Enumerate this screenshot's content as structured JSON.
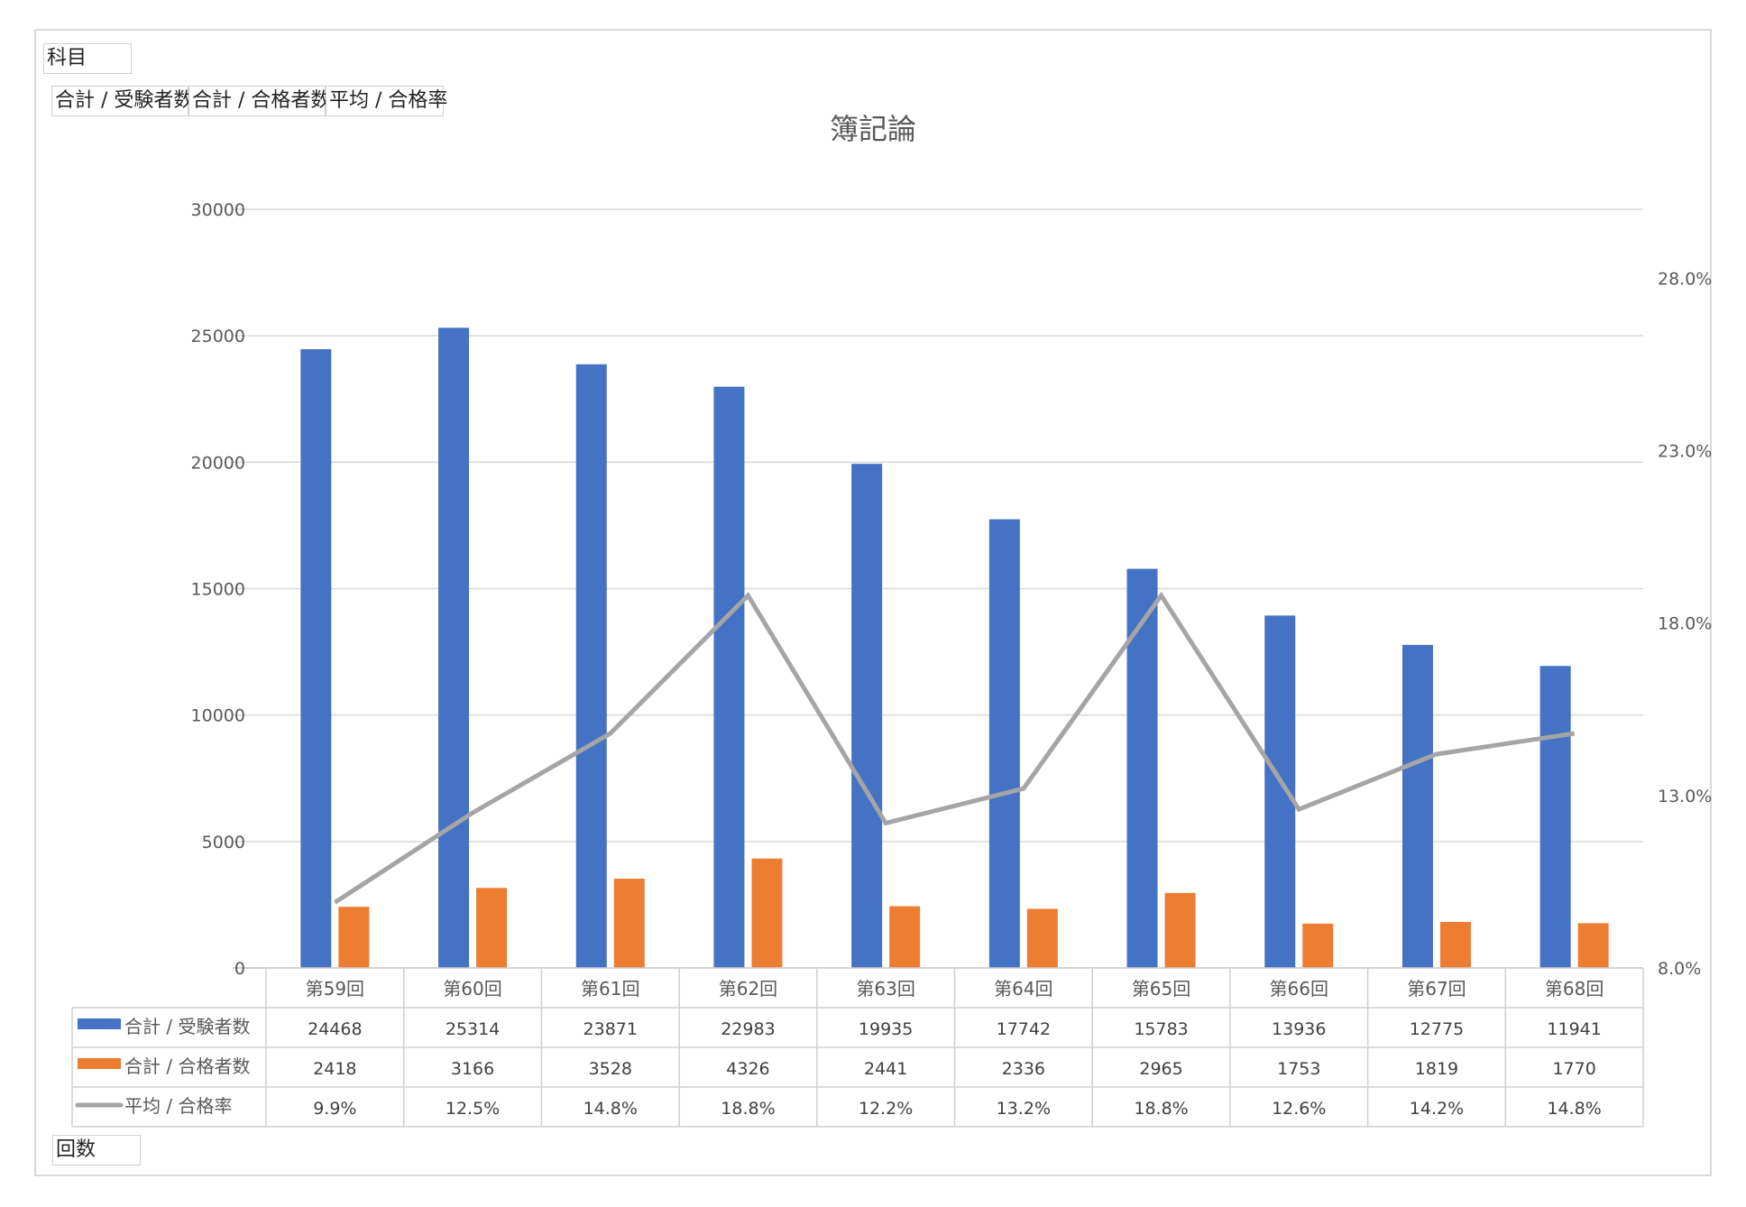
{
  "filters": {
    "subject": "科目",
    "values": [
      "合計 / 受験者数",
      "合計 / 合格者数",
      "平均 / 合格率"
    ],
    "axis_field": "回数"
  },
  "colors": {
    "examinees": "#4472C4",
    "passers": "#ED7D31",
    "rate": "#A5A5A5",
    "grid": "#d9d9d9"
  },
  "chart_data": {
    "type": "bar",
    "title": "簿記論",
    "categories": [
      "第59回",
      "第60回",
      "第61回",
      "第62回",
      "第63回",
      "第64回",
      "第65回",
      "第66回",
      "第67回",
      "第68回"
    ],
    "series": [
      {
        "name": "合計 / 受験者数",
        "type": "bar",
        "axis": "left",
        "values": [
          24468,
          25314,
          23871,
          22983,
          19935,
          17742,
          15783,
          13936,
          12775,
          11941
        ],
        "labels": [
          "24468",
          "25314",
          "23871",
          "22983",
          "19935",
          "17742",
          "15783",
          "13936",
          "12775",
          "11941"
        ]
      },
      {
        "name": "合計 / 合格者数",
        "type": "bar",
        "axis": "left",
        "values": [
          2418,
          3166,
          3528,
          4326,
          2441,
          2336,
          2965,
          1753,
          1819,
          1770
        ],
        "labels": [
          "2418",
          "3166",
          "3528",
          "4326",
          "2441",
          "2336",
          "2965",
          "1753",
          "1819",
          "1770"
        ]
      },
      {
        "name": "平均 / 合格率",
        "type": "line",
        "axis": "right",
        "values": [
          9.9,
          12.5,
          14.8,
          18.8,
          12.2,
          13.2,
          18.8,
          12.6,
          14.2,
          14.8
        ],
        "labels": [
          "9.9%",
          "12.5%",
          "14.8%",
          "18.8%",
          "12.2%",
          "13.2%",
          "18.8%",
          "12.6%",
          "14.2%",
          "14.8%"
        ]
      }
    ],
    "y_left": {
      "min": 0,
      "max": 30000,
      "ticks": [
        "0",
        "5000",
        "10000",
        "15000",
        "20000",
        "25000",
        "30000"
      ]
    },
    "y_right": {
      "min": 8,
      "max": 30,
      "ticks": [
        "8.0%",
        "13.0%",
        "18.0%",
        "23.0%",
        "28.0%"
      ],
      "tick_values": [
        8,
        13,
        18,
        23,
        28
      ]
    },
    "grid": true,
    "legend": "data-table"
  }
}
